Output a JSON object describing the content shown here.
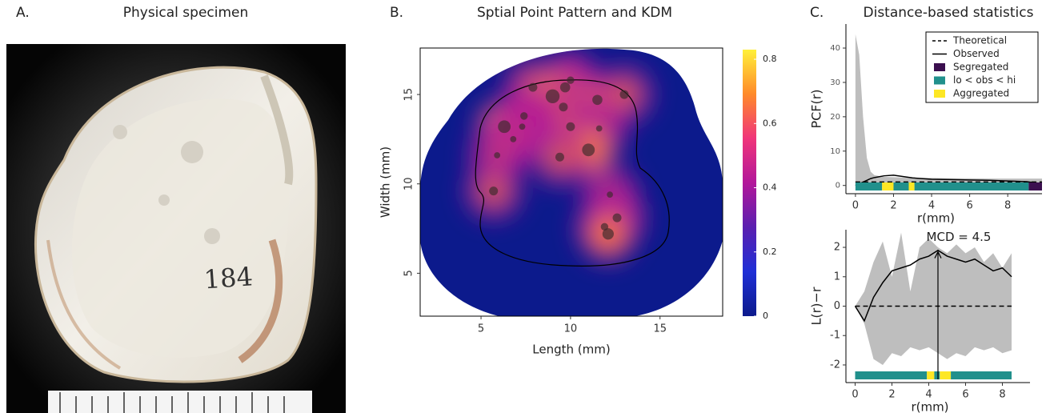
{
  "specimen": {
    "label": "A.",
    "title": "Physical specimen",
    "annotation": "184"
  },
  "chart_data": [
    {
      "type": "heatmap",
      "label": "B.",
      "title": "Sptial Point Pattern and KDM",
      "xlabel": "Length (mm)",
      "ylabel": "Width (mm)",
      "xlim": [
        1.6,
        18.5
      ],
      "ylim": [
        2.6,
        17.6
      ],
      "xticks": [
        5,
        10,
        15
      ],
      "yticks": [
        5,
        10,
        15
      ],
      "x": [
        7.9,
        10.0,
        9.7,
        9.0,
        9.6,
        11.5,
        13.0,
        7.4,
        6.3,
        7.3,
        6.8,
        10.0,
        11.6,
        11.0,
        9.4,
        5.9,
        5.7,
        12.2,
        12.6,
        11.9,
        12.1
      ],
      "y": [
        15.4,
        15.8,
        15.4,
        14.9,
        14.3,
        14.7,
        15.0,
        13.8,
        13.2,
        13.2,
        12.5,
        13.2,
        13.1,
        11.9,
        11.5,
        11.6,
        9.6,
        9.4,
        8.1,
        7.6,
        7.2
      ],
      "sizes": [
        5,
        4,
        6,
        9,
        5,
        6,
        5,
        4,
        8,
        3,
        3,
        5,
        3,
        8,
        5,
        3,
        5,
        3,
        5,
        4,
        7
      ],
      "colorbar": {
        "lim": [
          0,
          0.83
        ],
        "ticks": [
          0,
          0.2,
          0.4,
          0.6,
          0.8
        ],
        "colors": [
          "#0c1a8c",
          "#1f2fd6",
          "#5a1fb0",
          "#b2179a",
          "#f0357a",
          "#ff8a2a",
          "#fff03a"
        ]
      }
    },
    {
      "type": "line",
      "label": "C.",
      "title": "Distance-based statistics",
      "xlabel": "r(mm)",
      "ylabel": "PCF(r)",
      "xlim": [
        -0.5,
        9.8
      ],
      "ylim": [
        -2.4,
        47
      ],
      "xticks": [
        0,
        2,
        4,
        6,
        8
      ],
      "yticks": [
        0,
        10,
        20,
        30,
        40
      ],
      "x": [
        0,
        0.2,
        0.4,
        0.6,
        0.8,
        1,
        1.5,
        2,
        3,
        4,
        5,
        6,
        7,
        8,
        9,
        9.8
      ],
      "envelope": {
        "color": "#bebebe",
        "hi": [
          44,
          38,
          20,
          8,
          4,
          3,
          2.5,
          2.4,
          2.2,
          2.2,
          2.1,
          2.1,
          2,
          2,
          2,
          2
        ],
        "lo": [
          0,
          0,
          0,
          0,
          0,
          0,
          0,
          0.2,
          0.3,
          0.3,
          0.4,
          0.4,
          0.4,
          0.4,
          0.4,
          0.4
        ]
      },
      "series": [
        {
          "name": "Theoretical",
          "color": "#000000",
          "dash": true,
          "values": [
            1,
            1,
            1,
            1,
            1,
            1,
            1,
            1,
            1,
            1,
            1,
            1,
            1,
            1,
            1,
            1
          ]
        },
        {
          "name": "Observed",
          "color": "#000000",
          "values": [
            0,
            0.5,
            1,
            1.5,
            2,
            2.3,
            2.8,
            3,
            2.2,
            1.8,
            1.7,
            1.6,
            1.5,
            1.3,
            1.1,
            0.5
          ]
        }
      ],
      "states": [
        {
          "name": "Segregated",
          "color": "#3b0f4f"
        },
        {
          "name": "lo < obs < hi",
          "color": "#21908c"
        },
        {
          "name": "Aggregated",
          "color": "#fde725"
        }
      ],
      "segments": {
        "edges": [
          0,
          1.4,
          2.0,
          2.8,
          3.1,
          9.1,
          9.8
        ],
        "state": [
          1,
          2,
          1,
          2,
          1,
          0
        ]
      },
      "legend": "top-right"
    },
    {
      "type": "line",
      "xlabel": "r(mm)",
      "ylabel": "L(r)−r",
      "xlim": [
        -0.5,
        9.5
      ],
      "ylim": [
        -2.6,
        2.6
      ],
      "xticks": [
        0,
        2,
        4,
        6,
        8
      ],
      "yticks": [
        -2,
        -1,
        0,
        1,
        2
      ],
      "x": [
        0,
        0.5,
        1,
        1.5,
        2,
        2.5,
        3,
        3.5,
        4,
        4.5,
        5,
        5.5,
        6,
        6.5,
        7,
        7.5,
        8,
        8.5
      ],
      "envelope": {
        "color": "#bebebe",
        "hi": [
          0,
          0.5,
          1.5,
          2.2,
          1.0,
          2.5,
          0.5,
          2.0,
          2.3,
          2.0,
          1.8,
          2.1,
          1.8,
          2.0,
          1.5,
          1.8,
          1.3,
          1.8
        ],
        "lo": [
          0,
          -0.6,
          -1.8,
          -2.0,
          -1.6,
          -1.7,
          -1.4,
          -1.5,
          -1.4,
          -1.6,
          -1.8,
          -1.6,
          -1.7,
          -1.4,
          -1.5,
          -1.4,
          -1.6,
          -1.5
        ]
      },
      "series": [
        {
          "name": "Theoretical",
          "color": "#000000",
          "dash": true,
          "values": [
            0,
            0,
            0,
            0,
            0,
            0,
            0,
            0,
            0,
            0,
            0,
            0,
            0,
            0,
            0,
            0,
            0,
            0
          ]
        },
        {
          "name": "Observed",
          "color": "#000000",
          "values": [
            0,
            -0.5,
            0.3,
            0.8,
            1.2,
            1.3,
            1.4,
            1.6,
            1.7,
            1.9,
            1.7,
            1.6,
            1.5,
            1.6,
            1.4,
            1.2,
            1.3,
            1.0
          ]
        }
      ],
      "states": [
        {
          "color": "#3b0f4f"
        },
        {
          "color": "#21908c"
        },
        {
          "color": "#fde725"
        }
      ],
      "segments": {
        "edges": [
          0,
          3.9,
          4.3,
          4.6,
          5.2,
          8.5
        ],
        "state": [
          1,
          2,
          1,
          2,
          1
        ]
      },
      "annotation": {
        "text": "MCD = 4.5",
        "x": 4.5,
        "y": 1.85
      }
    }
  ]
}
